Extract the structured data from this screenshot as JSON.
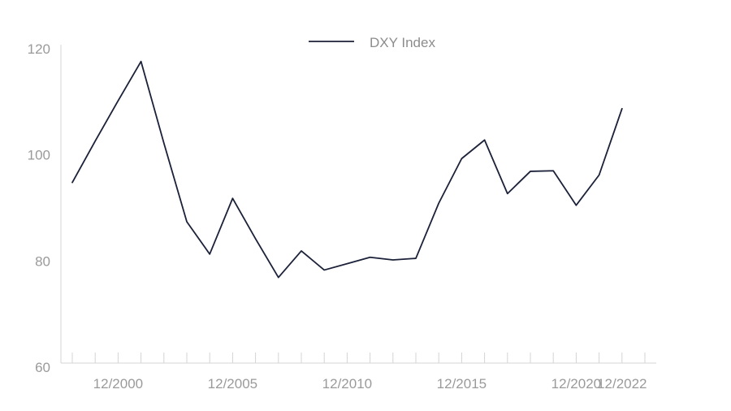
{
  "chart_data": {
    "type": "line",
    "title": "",
    "xlabel": "",
    "ylabel": "",
    "legend_position": "top-center",
    "grid": false,
    "ylim": [
      60,
      120
    ],
    "yticks": [
      60,
      80,
      100,
      120
    ],
    "xlim": [
      "12/1998",
      "12/2023"
    ],
    "xtick_labels": [
      "12/2000",
      "12/2005",
      "12/2010",
      "12/2015",
      "12/2020",
      "12/2022"
    ],
    "xtick_positions": [
      "12/2000",
      "12/2005",
      "12/2010",
      "12/2015",
      "12/2020",
      "12/2022"
    ],
    "minor_ticks": [
      "12/1998",
      "12/1999",
      "12/2000",
      "12/2001",
      "12/2002",
      "12/2003",
      "12/2004",
      "12/2005",
      "12/2006",
      "12/2007",
      "12/2008",
      "12/2009",
      "12/2010",
      "12/2011",
      "12/2012",
      "12/2013",
      "12/2014",
      "12/2015",
      "12/2016",
      "12/2017",
      "12/2018",
      "12/2019",
      "12/2020",
      "12/2021",
      "12/2022",
      "12/2023"
    ],
    "series": [
      {
        "name": "DXY Index",
        "color": "#1b2138",
        "x": [
          "12/1998",
          "12/1999",
          "12/2000",
          "12/2001",
          "12/2002",
          "12/2003",
          "12/2004",
          "12/2005",
          "12/2006",
          "12/2007",
          "12/2008",
          "12/2009",
          "12/2010",
          "12/2011",
          "12/2012",
          "12/2013",
          "12/2014",
          "12/2015",
          "12/2016",
          "12/2017",
          "12/2018",
          "12/2019",
          "12/2020",
          "12/2021",
          "12/2022"
        ],
        "values": [
          94.8,
          102.6,
          110.2,
          117.6,
          102.2,
          87.4,
          81.3,
          91.8,
          84.2,
          76.9,
          81.9,
          78.3,
          79.5,
          80.7,
          80.2,
          80.5,
          90.9,
          99.3,
          102.8,
          92.7,
          96.9,
          97.0,
          90.5,
          96.2,
          108.7
        ]
      }
    ]
  }
}
